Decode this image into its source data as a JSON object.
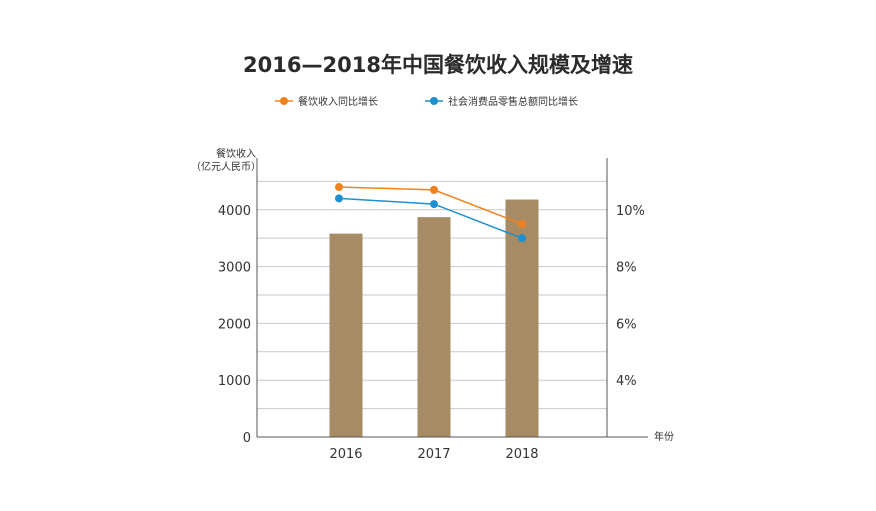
{
  "chart_data": {
    "type": "bar",
    "title": "2016—2018年中国餐饮收入规模及增速",
    "categories": [
      "2016",
      "2017",
      "2018"
    ],
    "xlabel": "年份",
    "ylabel_lines": [
      "餐饮收入",
      "（亿元人民币）"
    ],
    "left_axis": {
      "ylim": [
        0,
        4700
      ],
      "ticks": [
        0,
        1000,
        2000,
        3000,
        4000
      ]
    },
    "right_axis": {
      "ylim": [
        2.0,
        11.4
      ],
      "ticks": [
        4,
        6,
        8,
        10
      ],
      "tick_suffix": "%"
    },
    "bars": {
      "name": "餐饮收入",
      "values": [
        3580,
        3870,
        4180
      ],
      "color": "#a68b65"
    },
    "lines": [
      {
        "name": "餐饮收入同比增长",
        "values": [
          10.8,
          10.7,
          9.5
        ],
        "color": "#f0821e",
        "axis": "right"
      },
      {
        "name": "社会消费品零售总额同比增长",
        "values": [
          10.4,
          10.2,
          9.0
        ],
        "color": "#1e8fd0",
        "axis": "right"
      }
    ],
    "grid": true,
    "legend_position": "top"
  }
}
